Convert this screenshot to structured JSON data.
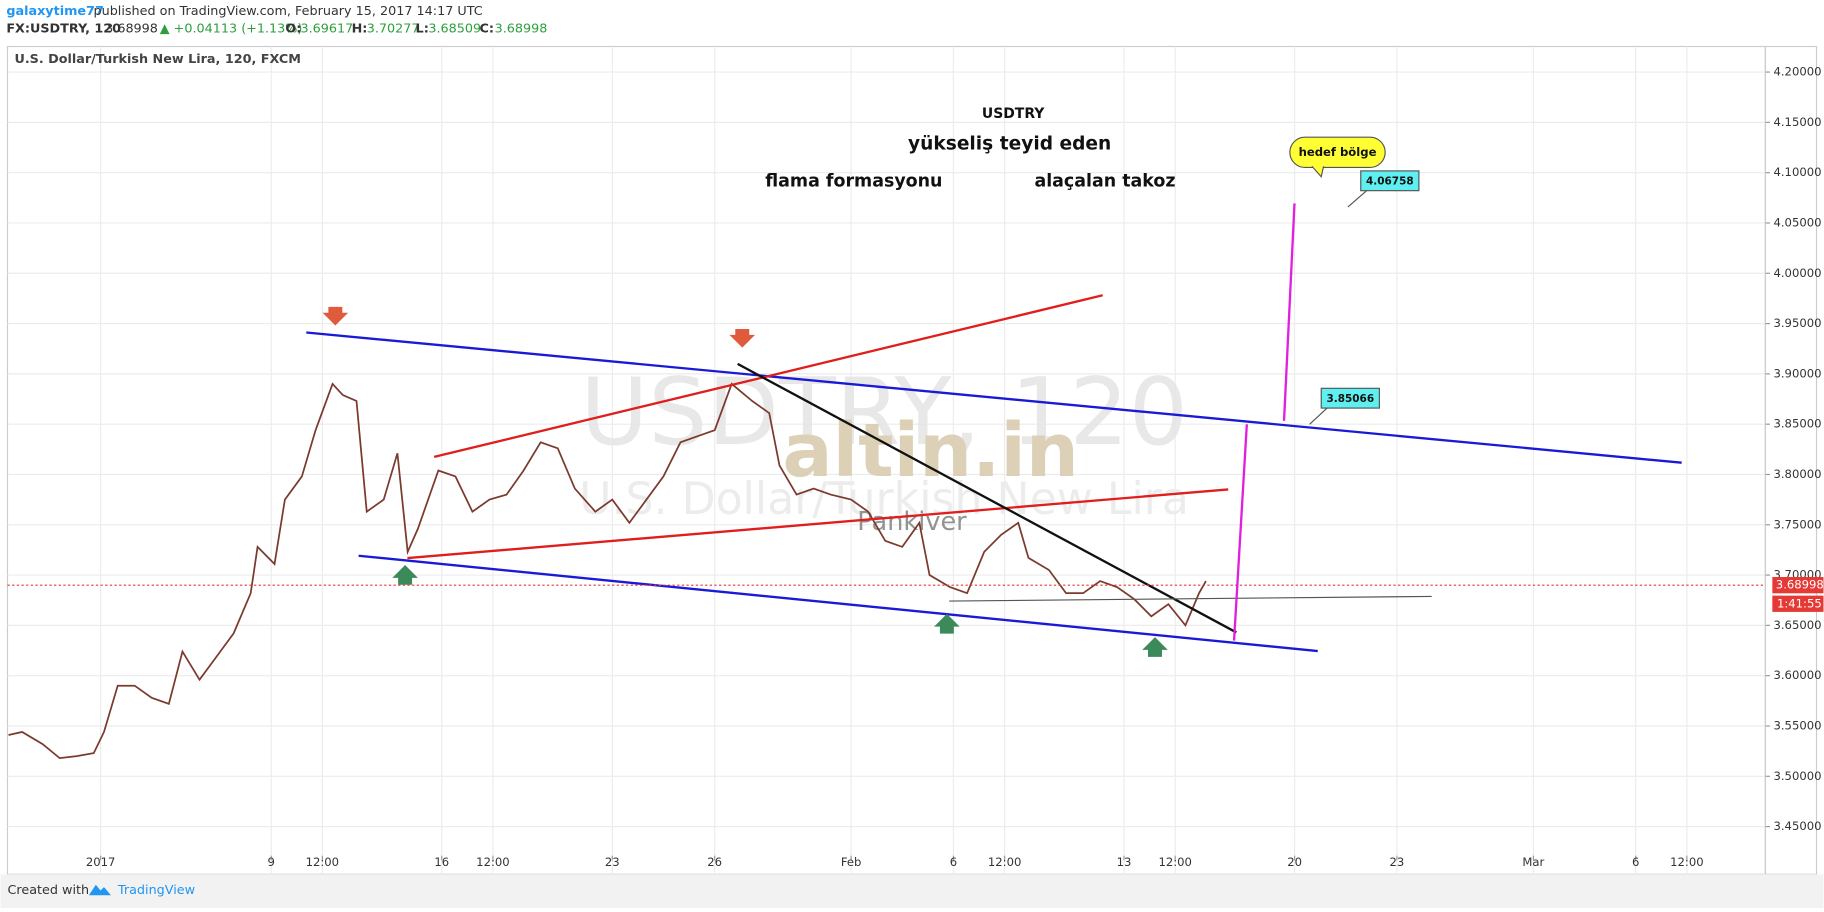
{
  "header": {
    "publisher": "galaxytime77",
    "published": "published on TradingView.com, February 15, 2017 14:17 UTC",
    "symbol": "FX:USDTRY, 120",
    "last": "3.68998",
    "change": "▲ +0.04113 (+1.13%)",
    "open_label": "O:",
    "open": "3.69617",
    "high_label": "H:",
    "high": "3.70277",
    "low_label": "L:",
    "low": "3.68509",
    "close_label": "C:",
    "close": "3.68998"
  },
  "footer": {
    "created_with": "Created with",
    "brand": "TradingView"
  },
  "chart_data": {
    "type": "line",
    "title": "U.S. Dollar/Turkish New Lira, 120, FXCM",
    "annotations": {
      "symbol": "USDTRY",
      "line1": "yükseliş teyid eden",
      "left": "flama formasyonu",
      "right": "alaçalan takoz",
      "target": "hedef bölge",
      "price_high": "4.06758",
      "price_mid": "3.85066",
      "watermark_symbol": "USDTRY, 120",
      "watermark_name": "U.S. Dollar/Turkish New Lira",
      "watermark_brand": "altin.in",
      "watermark_site": "Pankiver"
    },
    "countdown": "1:41:55",
    "last_price": 3.68998,
    "last_price_color": "#e53935",
    "grid": true,
    "xlim": [
      -2.73,
      48.8
    ],
    "ylim": [
      3.4026,
      4.2254
    ],
    "xticks": [
      {
        "value": 0,
        "label": "2017"
      },
      {
        "value": 5,
        "label": "9"
      },
      {
        "value": 6.5,
        "label": "12:00"
      },
      {
        "value": 10,
        "label": "16"
      },
      {
        "value": 11.5,
        "label": "12:00"
      },
      {
        "value": 15,
        "label": "23"
      },
      {
        "value": 18,
        "label": "26"
      },
      {
        "value": 22,
        "label": "Feb"
      },
      {
        "value": 25,
        "label": "6"
      },
      {
        "value": 26.5,
        "label": "12:00"
      },
      {
        "value": 30,
        "label": "13"
      },
      {
        "value": 31.5,
        "label": "12:00"
      },
      {
        "value": 35,
        "label": "20"
      },
      {
        "value": 38,
        "label": "23"
      },
      {
        "value": 42,
        "label": "Mar"
      },
      {
        "value": 45,
        "label": "6"
      },
      {
        "value": 46.5,
        "label": "12:00"
      }
    ],
    "yticks": [
      {
        "value": 3.45,
        "label": "3.45000"
      },
      {
        "value": 3.5,
        "label": "3.50000"
      },
      {
        "value": 3.55,
        "label": "3.55000"
      },
      {
        "value": 3.6,
        "label": "3.60000"
      },
      {
        "value": 3.65,
        "label": "3.65000"
      },
      {
        "value": 3.7,
        "label": "3.70000"
      },
      {
        "value": 3.75,
        "label": "3.75000"
      },
      {
        "value": 3.8,
        "label": "3.80000"
      },
      {
        "value": 3.85,
        "label": "3.85000"
      },
      {
        "value": 3.9,
        "label": "3.90000"
      },
      {
        "value": 3.95,
        "label": "3.95000"
      },
      {
        "value": 4.0,
        "label": "4.00000"
      },
      {
        "value": 4.05,
        "label": "4.05000"
      },
      {
        "value": 4.1,
        "label": "4.10000"
      },
      {
        "value": 4.15,
        "label": "4.15000"
      },
      {
        "value": 4.2,
        "label": "4.20000"
      }
    ],
    "x": [
      -2.7,
      -2.3,
      -1.7,
      -1.2,
      -0.7,
      -0.2,
      0.1,
      0.5,
      1.0,
      1.5,
      2.0,
      2.4,
      2.9,
      3.4,
      3.9,
      4.4,
      4.6,
      5.1,
      5.4,
      5.9,
      6.3,
      6.8,
      7.1,
      7.5,
      7.8,
      8.3,
      8.7,
      9.0,
      9.3,
      9.9,
      10.4,
      10.9,
      11.4,
      11.9,
      12.4,
      12.9,
      13.4,
      13.9,
      14.5,
      15.0,
      15.5,
      16.0,
      16.5,
      17.0,
      17.5,
      18.0,
      18.5,
      19.1,
      19.6,
      19.9,
      20.4,
      20.9,
      21.4,
      22.0,
      22.5,
      23.0,
      23.5,
      24.0,
      24.3,
      24.9,
      25.4,
      25.9,
      26.4,
      26.9,
      27.2,
      27.8,
      28.3,
      28.8,
      29.3,
      29.8,
      30.3,
      30.8,
      31.3,
      31.8,
      32.2,
      32.4
    ],
    "series": [
      {
        "color": "#7a3b2e",
        "values": [
          3.541,
          3.544,
          3.532,
          3.518,
          3.52,
          3.523,
          3.544,
          3.59,
          3.59,
          3.578,
          3.572,
          3.624,
          3.596,
          3.619,
          3.642,
          3.682,
          3.728,
          3.711,
          3.775,
          3.798,
          3.844,
          3.89,
          3.879,
          3.873,
          3.763,
          3.775,
          3.821,
          3.723,
          3.746,
          3.804,
          3.798,
          3.763,
          3.775,
          3.78,
          3.804,
          3.832,
          3.826,
          3.786,
          3.763,
          3.775,
          3.752,
          3.775,
          3.798,
          3.832,
          3.838,
          3.844,
          3.89,
          3.873,
          3.861,
          3.809,
          3.78,
          3.786,
          3.78,
          3.775,
          3.763,
          3.734,
          3.728,
          3.752,
          3.7,
          3.688,
          3.682,
          3.723,
          3.74,
          3.752,
          3.717,
          3.705,
          3.682,
          3.682,
          3.694,
          3.688,
          3.676,
          3.659,
          3.671,
          3.65,
          3.682,
          3.694
        ]
      }
    ]
  }
}
